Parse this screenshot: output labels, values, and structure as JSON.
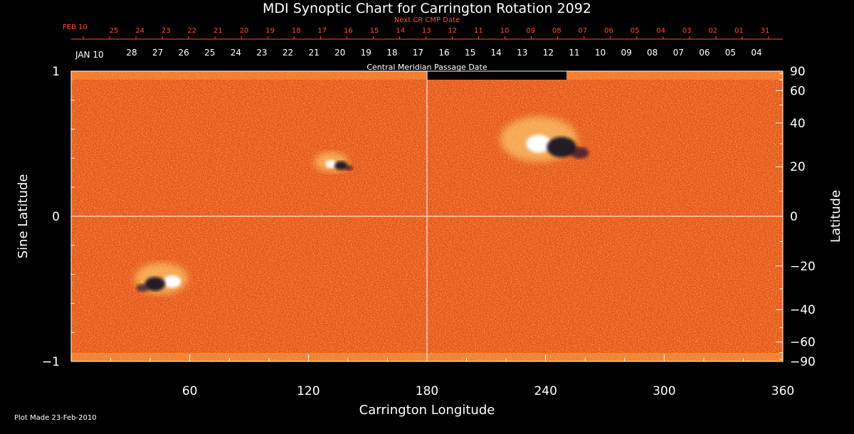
{
  "chart_data": {
    "type": "heatmap",
    "title": "MDI Synoptic Chart for Carrington Rotation 2092",
    "xlabel": "Carrington Longitude",
    "ylabel_left": "Sine Latitude",
    "ylabel_right": "Latitude",
    "xlim": [
      0,
      360
    ],
    "ylim": [
      -1,
      1
    ],
    "x_ticks": [
      60,
      120,
      180,
      240,
      300,
      360
    ],
    "y_ticks_left": [
      -1,
      0,
      1
    ],
    "y_ticks_right": [
      90,
      60,
      40,
      20,
      0,
      -20,
      -40,
      -60,
      -90
    ],
    "next_cr_axis_label": "Next CR CMP Date",
    "next_cr_month_label": "FEB 10",
    "next_cr_days": [
      "25",
      "24",
      "23",
      "22",
      "21",
      "20",
      "19",
      "18",
      "17",
      "16",
      "15",
      "14",
      "13",
      "12",
      "11",
      "10",
      "09",
      "08",
      "07",
      "06",
      "05",
      "04",
      "03",
      "02",
      "01",
      "31"
    ],
    "cmp_axis_label": "Central Meridian Passage Date",
    "cmp_month_label": "JAN 10",
    "cmp_days": [
      "28",
      "27",
      "26",
      "25",
      "24",
      "23",
      "22",
      "21",
      "20",
      "19",
      "18",
      "17",
      "16",
      "15",
      "14",
      "13",
      "12",
      "11",
      "10",
      "09",
      "08",
      "07",
      "06",
      "05",
      "04"
    ],
    "footer": "Plot Made 23-Feb-2010",
    "active_regions": [
      {
        "longitude": 133,
        "sine_latitude": 0.36
      },
      {
        "longitude": 240,
        "sine_latitude": 0.5
      },
      {
        "longitude": 48,
        "sine_latitude": -0.45
      }
    ]
  },
  "colors": {
    "background": "#000000",
    "field_base": "#e8501a",
    "axis": "#ffffff",
    "next_cr": "#ff4a2a"
  }
}
